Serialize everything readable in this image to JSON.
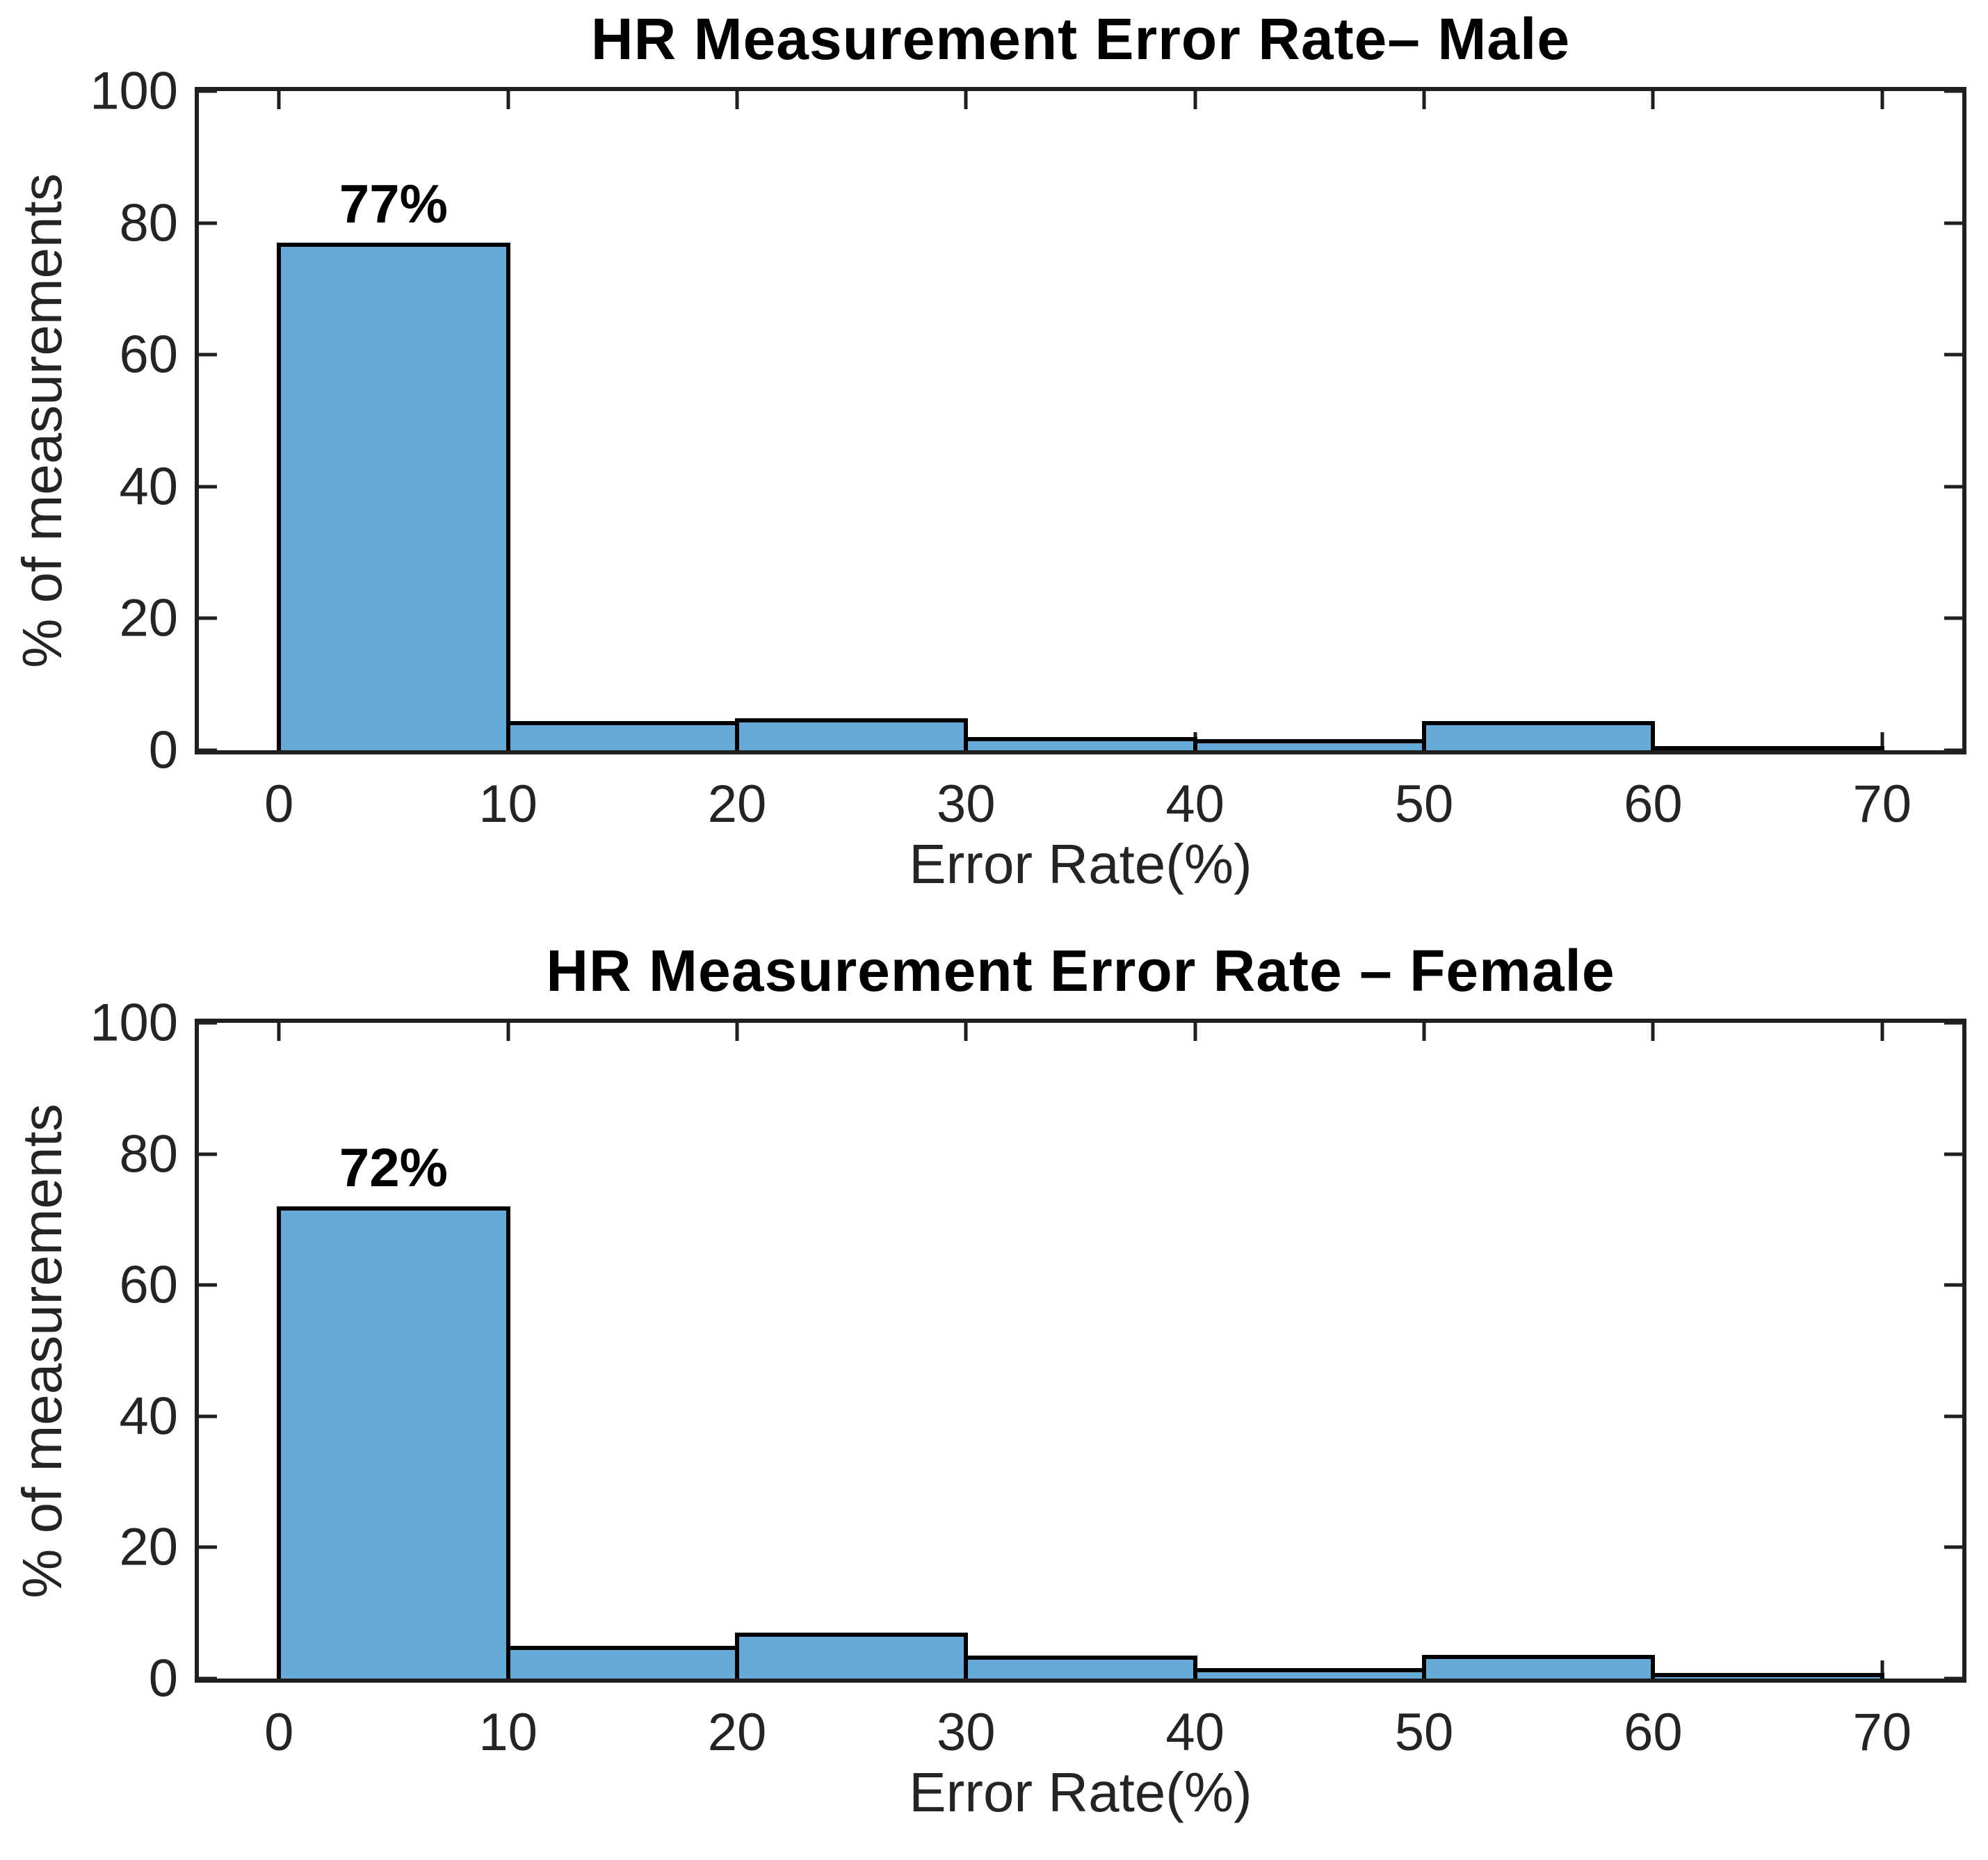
{
  "figure": {
    "background": "#ffffff",
    "colors": {
      "bar_fill": "#66aad7",
      "bar_edge": "#000000",
      "axis": "#1f1f1f",
      "tick_label": "#242424",
      "title": "#000000"
    }
  },
  "chart_data": [
    {
      "type": "bar",
      "subtype": "histogram",
      "title": "HR Measurement Error Rate– Male",
      "xlabel": "Error Rate(%)",
      "ylabel": "% of measurements",
      "bin_edges": [
        0,
        10,
        20,
        30,
        40,
        50,
        60,
        70
      ],
      "values": [
        77,
        4.4,
        4.9,
        2.0,
        1.7,
        4.4,
        0.4
      ],
      "annotation": {
        "text": "77%",
        "x": 5,
        "y": 77
      },
      "xlim": [
        -3.5,
        73.5
      ],
      "ylim": [
        0,
        100
      ],
      "xticks": [
        0,
        10,
        20,
        30,
        40,
        50,
        60,
        70
      ],
      "yticks": [
        0,
        20,
        40,
        60,
        80,
        100
      ],
      "grid": false,
      "legend": null
    },
    {
      "type": "bar",
      "subtype": "histogram",
      "title": "HR Measurement Error Rate – Female",
      "xlabel": "Error Rate(%)",
      "ylabel": "% of measurements",
      "bin_edges": [
        0,
        10,
        20,
        30,
        40,
        50,
        60,
        70
      ],
      "values": [
        72,
        5.0,
        7.0,
        3.5,
        1.6,
        3.6,
        0.8
      ],
      "annotation": {
        "text": "72%",
        "x": 5,
        "y": 72
      },
      "xlim": [
        -3.5,
        73.5
      ],
      "ylim": [
        0,
        100
      ],
      "xticks": [
        0,
        10,
        20,
        30,
        40,
        50,
        60,
        70
      ],
      "yticks": [
        0,
        20,
        40,
        60,
        80,
        100
      ],
      "grid": false,
      "legend": null
    }
  ]
}
